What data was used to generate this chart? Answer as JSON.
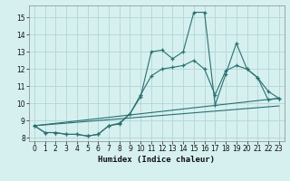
{
  "title": "",
  "xlabel": "Humidex (Indice chaleur)",
  "ylabel": "",
  "background_color": "#d6f0f0",
  "grid_color": "#b8d8d8",
  "line_color": "#2a7070",
  "xlim": [
    -0.5,
    23.5
  ],
  "ylim": [
    7.8,
    15.7
  ],
  "yticks": [
    8,
    9,
    10,
    11,
    12,
    13,
    14,
    15
  ],
  "xticks": [
    0,
    1,
    2,
    3,
    4,
    5,
    6,
    7,
    8,
    9,
    10,
    11,
    12,
    13,
    14,
    15,
    16,
    17,
    18,
    19,
    20,
    21,
    22,
    23
  ],
  "series1": {
    "x": [
      0,
      1,
      2,
      3,
      4,
      5,
      6,
      7,
      8,
      9,
      10,
      11,
      12,
      13,
      14,
      15,
      16,
      17,
      18,
      19,
      20,
      21,
      22,
      23
    ],
    "y": [
      8.7,
      8.3,
      8.3,
      8.2,
      8.2,
      8.1,
      8.2,
      8.7,
      8.8,
      9.4,
      10.4,
      13.0,
      13.1,
      12.6,
      13.0,
      15.3,
      15.3,
      9.9,
      11.7,
      13.5,
      12.0,
      11.5,
      10.7,
      10.3
    ]
  },
  "series2": {
    "x": [
      0,
      1,
      2,
      3,
      4,
      5,
      6,
      7,
      8,
      9,
      10,
      11,
      12,
      13,
      14,
      15,
      16,
      17,
      18,
      19,
      20,
      21,
      22,
      23
    ],
    "y": [
      8.7,
      8.3,
      8.3,
      8.2,
      8.2,
      8.1,
      8.2,
      8.7,
      8.85,
      9.4,
      10.5,
      11.6,
      12.0,
      12.1,
      12.2,
      12.5,
      12.0,
      10.5,
      11.9,
      12.2,
      12.0,
      11.5,
      10.2,
      10.3
    ]
  },
  "line3": {
    "x": [
      0,
      23
    ],
    "y": [
      8.7,
      10.3
    ]
  },
  "line4": {
    "x": [
      0,
      23
    ],
    "y": [
      8.7,
      9.85
    ]
  }
}
